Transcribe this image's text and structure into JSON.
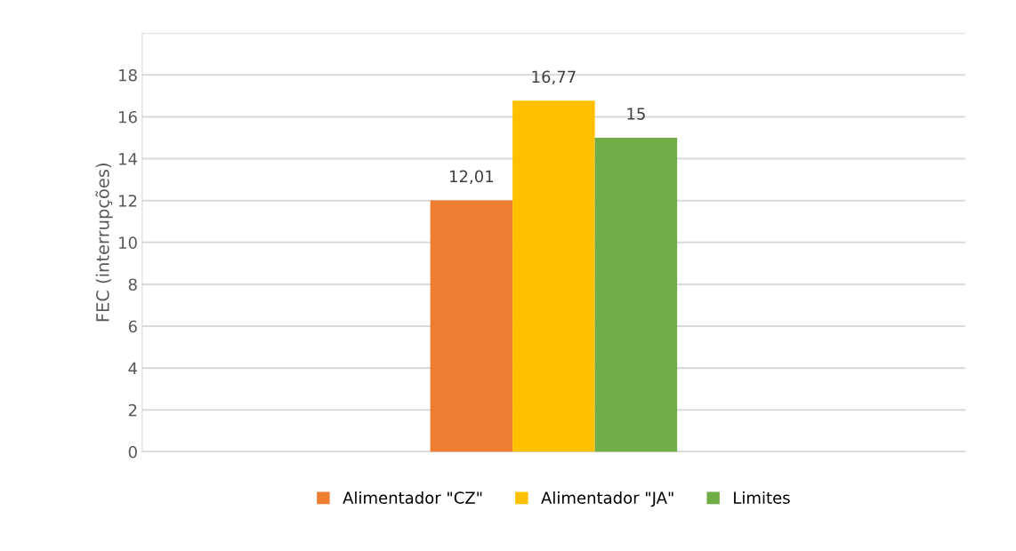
{
  "chart_data": {
    "type": "bar",
    "ylabel": "FEC (interrupções)",
    "categories": [
      null
    ],
    "series": [
      {
        "name": "Alimentador \"CZ\"",
        "color": "#ed7d31",
        "values": [
          12.01
        ],
        "value_labels": [
          "12,01"
        ]
      },
      {
        "name": "Alimentador \"JA\"",
        "color": "#ffc000",
        "values": [
          16.77
        ],
        "value_labels": [
          "16,77"
        ]
      },
      {
        "name": "Limites",
        "color": "#70ad47",
        "values": [
          15
        ],
        "value_labels": [
          "15"
        ]
      }
    ],
    "ylim": [
      0,
      20
    ],
    "yticks": [
      0,
      2,
      4,
      6,
      8,
      10,
      12,
      14,
      16,
      18,
      {
        "value": 20,
        "label": null
      }
    ],
    "grid": "y",
    "legend": "bottom"
  }
}
